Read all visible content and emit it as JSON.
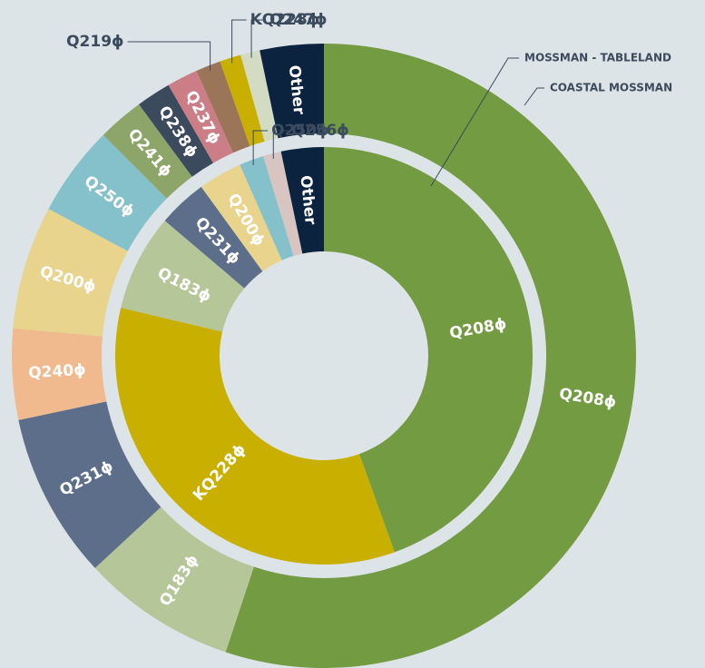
{
  "chart_data": {
    "type": "donut",
    "series": [
      {
        "name": "COASTAL MOSSMAN",
        "categories": [
          "Q208ɸ",
          "Q183ɸ",
          "Q231ɸ",
          "Q240ɸ",
          "Q200ɸ",
          "Q250ɸ",
          "Q241ɸ",
          "Q238ɸ",
          "Q237ɸ",
          "Q219ɸ",
          "KQ228ɸ",
          "Q247ɸ",
          "Other"
        ],
        "values": [
          55.1,
          8,
          8.6,
          4.7,
          6.4,
          4.7,
          2.4,
          1.8,
          1.6,
          1.3,
          1.1,
          1,
          3.3
        ],
        "colors": [
          "#739b41",
          "#b5c698",
          "#5d6e8b",
          "#f1b98e",
          "#e8d48c",
          "#85c1cb",
          "#8ea56a",
          "#3b4a5c",
          "#cc7e86",
          "#9a7558",
          "#c9b000",
          "#d3dbc3",
          "#0c2340"
        ]
      },
      {
        "name": "MOSSMAN - TABLELAND",
        "categories": [
          "Q208ɸ",
          "KQ228ɸ",
          "Q183ɸ",
          "Q231ɸ",
          "Q200ɸ",
          "Q250ɸ",
          "Q256ɸ",
          "Other"
        ],
        "values": [
          44.5,
          34.2,
          7.5,
          3.8,
          3.4,
          1.9,
          1.4,
          3.3
        ],
        "colors": [
          "#739b41",
          "#c9b000",
          "#b5c698",
          "#5d6e8b",
          "#e8d48c",
          "#85c1cb",
          "#d8c4c0",
          "#0c2340"
        ]
      }
    ]
  }
}
